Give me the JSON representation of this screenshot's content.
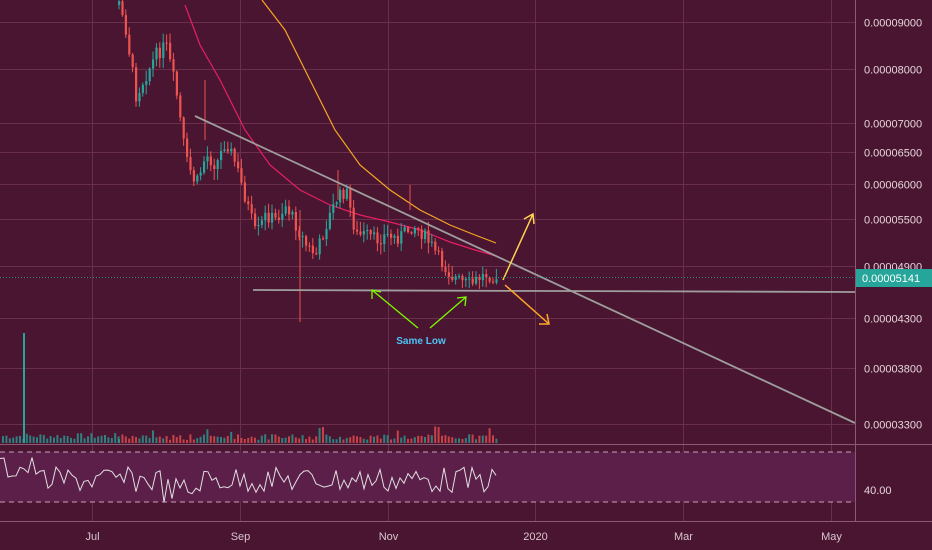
{
  "chart_data": {
    "type": "candlestick",
    "price_axis": {
      "scale": "log",
      "range": [
        3.15e-05,
        9.5e-05
      ],
      "ticks": [
        "0.00009000",
        "0.00008000",
        "0.00007000",
        "0.00006500",
        "0.00006000",
        "0.00005500",
        "0.00004900",
        "0.00004300",
        "0.00003800",
        "0.00003300"
      ]
    },
    "time_axis": {
      "ticks": [
        "Jul",
        "Sep",
        "Nov",
        "2020",
        "Mar",
        "May"
      ],
      "range_months": [
        5.75,
        17.33
      ],
      "tick_months": [
        7,
        9,
        11,
        13,
        15,
        17
      ]
    },
    "last_price": "0.00005141",
    "last_price_color": "#26a69a",
    "colors": {
      "up": "#26a69a",
      "down": "#ef5350",
      "ma_fast": "#e91e63",
      "ma_slow": "#f5a623",
      "trendline": "#9e9e9e",
      "rsi": "#e0e0e0",
      "rsi_band": "#5c1f4a",
      "arrow_up": "#ffd54f",
      "arrow_down": "#ffa726",
      "arrow_green": "#7cfc00",
      "label": "#4fc3f7"
    },
    "rsi": {
      "level_label": "40.00"
    },
    "annotations": [
      {
        "text": "Same Low"
      }
    ]
  }
}
